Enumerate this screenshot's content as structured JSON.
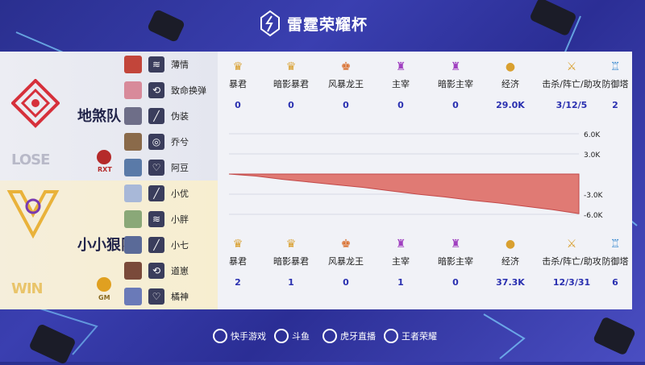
{
  "header": {
    "title": "雷霆荣耀杯"
  },
  "teams": [
    {
      "name": "地煞队",
      "result": "LOSE",
      "tag": "RXT",
      "players": [
        {
          "name": "薄情"
        },
        {
          "name": "致命换弹"
        },
        {
          "name": "伪装"
        },
        {
          "name": "乔兮"
        },
        {
          "name": "阿豆"
        }
      ],
      "stats": {
        "tyrant": "0",
        "shadow_tyrant": "0",
        "storm_dragon": "0",
        "overlord": "0",
        "shadow_overlord": "0",
        "economy": "29.0K",
        "kda": "3/12/5",
        "towers": "2"
      }
    },
    {
      "name": "小小狠队",
      "result": "WIN",
      "tag": "GM",
      "players": [
        {
          "name": "小优"
        },
        {
          "name": "小胖"
        },
        {
          "name": "小七"
        },
        {
          "name": "道崽"
        },
        {
          "name": "橘神"
        }
      ],
      "stats": {
        "tyrant": "2",
        "shadow_tyrant": "1",
        "storm_dragon": "0",
        "overlord": "1",
        "shadow_overlord": "0",
        "economy": "37.3K",
        "kda": "12/3/31",
        "towers": "6"
      }
    }
  ],
  "stat_labels": {
    "tyrant": "暴君",
    "shadow_tyrant": "暗影暴君",
    "storm_dragon": "风暴龙王",
    "overlord": "主宰",
    "shadow_overlord": "暗影主宰",
    "economy": "经济",
    "kda": "击杀/阵亡/助攻",
    "towers": "防御塔"
  },
  "chart_data": {
    "type": "area",
    "title": "",
    "ylim": [
      -6.0,
      6.0
    ],
    "y_ticks": [
      "6.0K",
      "3.0K",
      "-3.0K",
      "-6.0K"
    ],
    "series": [
      {
        "values": [
          0,
          -0.3,
          -0.8,
          -1.2,
          -1.6,
          -2.0,
          -2.5,
          -3.0,
          -3.4,
          -3.9,
          -4.3,
          -4.8,
          -5.3,
          -5.9
        ]
      }
    ],
    "fill_color": "#e07a74"
  },
  "sponsors": [
    "快手游戏",
    "斗鱼",
    "虎牙直播",
    "王者荣耀"
  ]
}
